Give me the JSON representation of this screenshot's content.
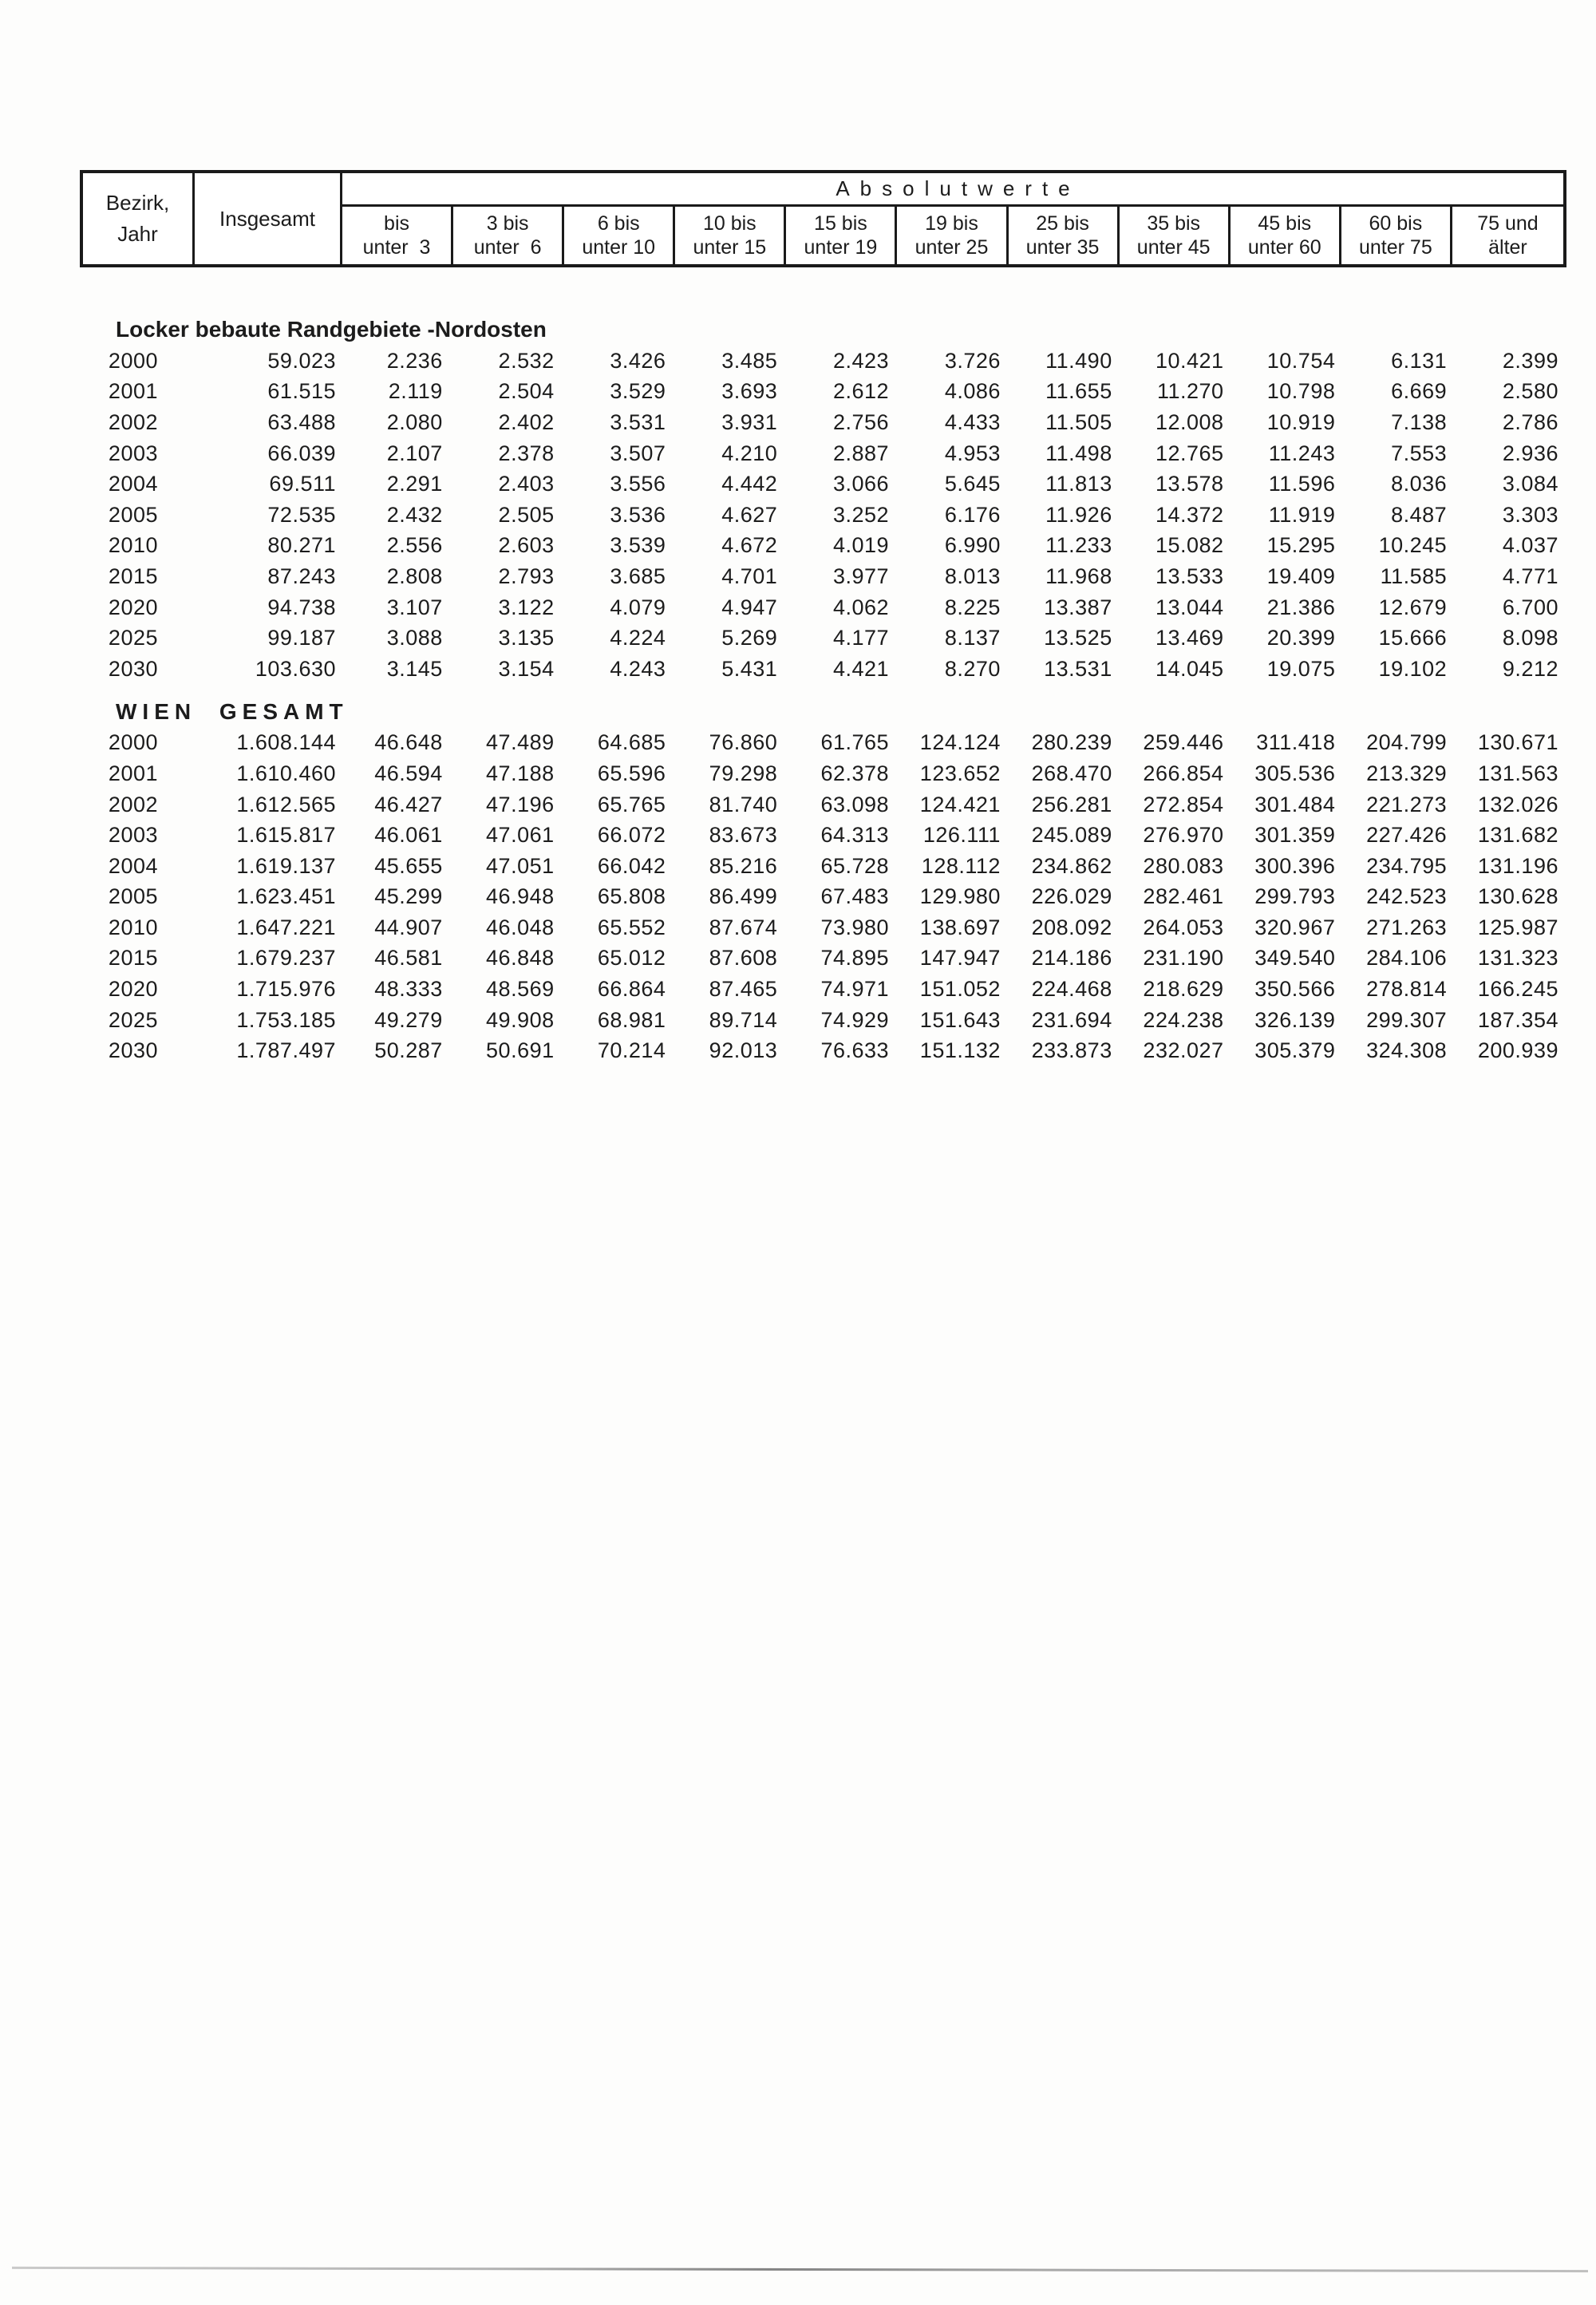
{
  "table": {
    "header": {
      "row_label_line1": "Bezirk,",
      "row_label_line2": "Jahr",
      "total_label": "Insgesamt",
      "group_label": "Absolutwerte",
      "age_columns": [
        {
          "l1": "bis",
          "l2": "unter  3"
        },
        {
          "l1": "3 bis",
          "l2": "unter  6"
        },
        {
          "l1": "6 bis",
          "l2": "unter 10"
        },
        {
          "l1": "10 bis",
          "l2": "unter 15"
        },
        {
          "l1": "15 bis",
          "l2": "unter 19"
        },
        {
          "l1": "19 bis",
          "l2": "unter 25"
        },
        {
          "l1": "25 bis",
          "l2": "unter 35"
        },
        {
          "l1": "35 bis",
          "l2": "unter 45"
        },
        {
          "l1": "45 bis",
          "l2": "unter 60"
        },
        {
          "l1": "60 bis",
          "l2": "unter 75"
        },
        {
          "l1": "75 und",
          "l2": "älter"
        }
      ]
    },
    "sections": [
      {
        "title": "Locker bebaute Randgebiete -Nordosten",
        "title_spaced": false,
        "rows": [
          {
            "year": "2000",
            "insgesamt": "59.023",
            "values": [
              "2.236",
              "2.532",
              "3.426",
              "3.485",
              "2.423",
              "3.726",
              "11.490",
              "10.421",
              "10.754",
              "6.131",
              "2.399"
            ]
          },
          {
            "year": "2001",
            "insgesamt": "61.515",
            "values": [
              "2.119",
              "2.504",
              "3.529",
              "3.693",
              "2.612",
              "4.086",
              "11.655",
              "11.270",
              "10.798",
              "6.669",
              "2.580"
            ]
          },
          {
            "year": "2002",
            "insgesamt": "63.488",
            "values": [
              "2.080",
              "2.402",
              "3.531",
              "3.931",
              "2.756",
              "4.433",
              "11.505",
              "12.008",
              "10.919",
              "7.138",
              "2.786"
            ]
          },
          {
            "year": "2003",
            "insgesamt": "66.039",
            "values": [
              "2.107",
              "2.378",
              "3.507",
              "4.210",
              "2.887",
              "4.953",
              "11.498",
              "12.765",
              "11.243",
              "7.553",
              "2.936"
            ]
          },
          {
            "year": "2004",
            "insgesamt": "69.511",
            "values": [
              "2.291",
              "2.403",
              "3.556",
              "4.442",
              "3.066",
              "5.645",
              "11.813",
              "13.578",
              "11.596",
              "8.036",
              "3.084"
            ]
          },
          {
            "year": "2005",
            "insgesamt": "72.535",
            "values": [
              "2.432",
              "2.505",
              "3.536",
              "4.627",
              "3.252",
              "6.176",
              "11.926",
              "14.372",
              "11.919",
              "8.487",
              "3.303"
            ]
          },
          {
            "year": "2010",
            "insgesamt": "80.271",
            "values": [
              "2.556",
              "2.603",
              "3.539",
              "4.672",
              "4.019",
              "6.990",
              "11.233",
              "15.082",
              "15.295",
              "10.245",
              "4.037"
            ]
          },
          {
            "year": "2015",
            "insgesamt": "87.243",
            "values": [
              "2.808",
              "2.793",
              "3.685",
              "4.701",
              "3.977",
              "8.013",
              "11.968",
              "13.533",
              "19.409",
              "11.585",
              "4.771"
            ]
          },
          {
            "year": "2020",
            "insgesamt": "94.738",
            "values": [
              "3.107",
              "3.122",
              "4.079",
              "4.947",
              "4.062",
              "8.225",
              "13.387",
              "13.044",
              "21.386",
              "12.679",
              "6.700"
            ]
          },
          {
            "year": "2025",
            "insgesamt": "99.187",
            "values": [
              "3.088",
              "3.135",
              "4.224",
              "5.269",
              "4.177",
              "8.137",
              "13.525",
              "13.469",
              "20.399",
              "15.666",
              "8.098"
            ]
          },
          {
            "year": "2030",
            "insgesamt": "103.630",
            "values": [
              "3.145",
              "3.154",
              "4.243",
              "5.431",
              "4.421",
              "8.270",
              "13.531",
              "14.045",
              "19.075",
              "19.102",
              "9.212"
            ]
          }
        ]
      },
      {
        "title": "WIEN GESAMT",
        "title_spaced": true,
        "rows": [
          {
            "year": "2000",
            "insgesamt": "1.608.144",
            "values": [
              "46.648",
              "47.489",
              "64.685",
              "76.860",
              "61.765",
              "124.124",
              "280.239",
              "259.446",
              "311.418",
              "204.799",
              "130.671"
            ]
          },
          {
            "year": "2001",
            "insgesamt": "1.610.460",
            "values": [
              "46.594",
              "47.188",
              "65.596",
              "79.298",
              "62.378",
              "123.652",
              "268.470",
              "266.854",
              "305.536",
              "213.329",
              "131.563"
            ]
          },
          {
            "year": "2002",
            "insgesamt": "1.612.565",
            "values": [
              "46.427",
              "47.196",
              "65.765",
              "81.740",
              "63.098",
              "124.421",
              "256.281",
              "272.854",
              "301.484",
              "221.273",
              "132.026"
            ]
          },
          {
            "year": "2003",
            "insgesamt": "1.615.817",
            "values": [
              "46.061",
              "47.061",
              "66.072",
              "83.673",
              "64.313",
              "126.111",
              "245.089",
              "276.970",
              "301.359",
              "227.426",
              "131.682"
            ]
          },
          {
            "year": "2004",
            "insgesamt": "1.619.137",
            "values": [
              "45.655",
              "47.051",
              "66.042",
              "85.216",
              "65.728",
              "128.112",
              "234.862",
              "280.083",
              "300.396",
              "234.795",
              "131.196"
            ]
          },
          {
            "year": "2005",
            "insgesamt": "1.623.451",
            "values": [
              "45.299",
              "46.948",
              "65.808",
              "86.499",
              "67.483",
              "129.980",
              "226.029",
              "282.461",
              "299.793",
              "242.523",
              "130.628"
            ]
          },
          {
            "year": "2010",
            "insgesamt": "1.647.221",
            "values": [
              "44.907",
              "46.048",
              "65.552",
              "87.674",
              "73.980",
              "138.697",
              "208.092",
              "264.053",
              "320.967",
              "271.263",
              "125.987"
            ]
          },
          {
            "year": "2015",
            "insgesamt": "1.679.237",
            "values": [
              "46.581",
              "46.848",
              "65.012",
              "87.608",
              "74.895",
              "147.947",
              "214.186",
              "231.190",
              "349.540",
              "284.106",
              "131.323"
            ]
          },
          {
            "year": "2020",
            "insgesamt": "1.715.976",
            "values": [
              "48.333",
              "48.569",
              "66.864",
              "87.465",
              "74.971",
              "151.052",
              "224.468",
              "218.629",
              "350.566",
              "278.814",
              "166.245"
            ]
          },
          {
            "year": "2025",
            "insgesamt": "1.753.185",
            "values": [
              "49.279",
              "49.908",
              "68.981",
              "89.714",
              "74.929",
              "151.643",
              "231.694",
              "224.238",
              "326.139",
              "299.307",
              "187.354"
            ]
          },
          {
            "year": "2030",
            "insgesamt": "1.787.497",
            "values": [
              "50.287",
              "50.691",
              "70.214",
              "92.013",
              "76.633",
              "151.132",
              "233.873",
              "232.027",
              "305.379",
              "324.308",
              "200.939"
            ]
          }
        ]
      }
    ]
  }
}
